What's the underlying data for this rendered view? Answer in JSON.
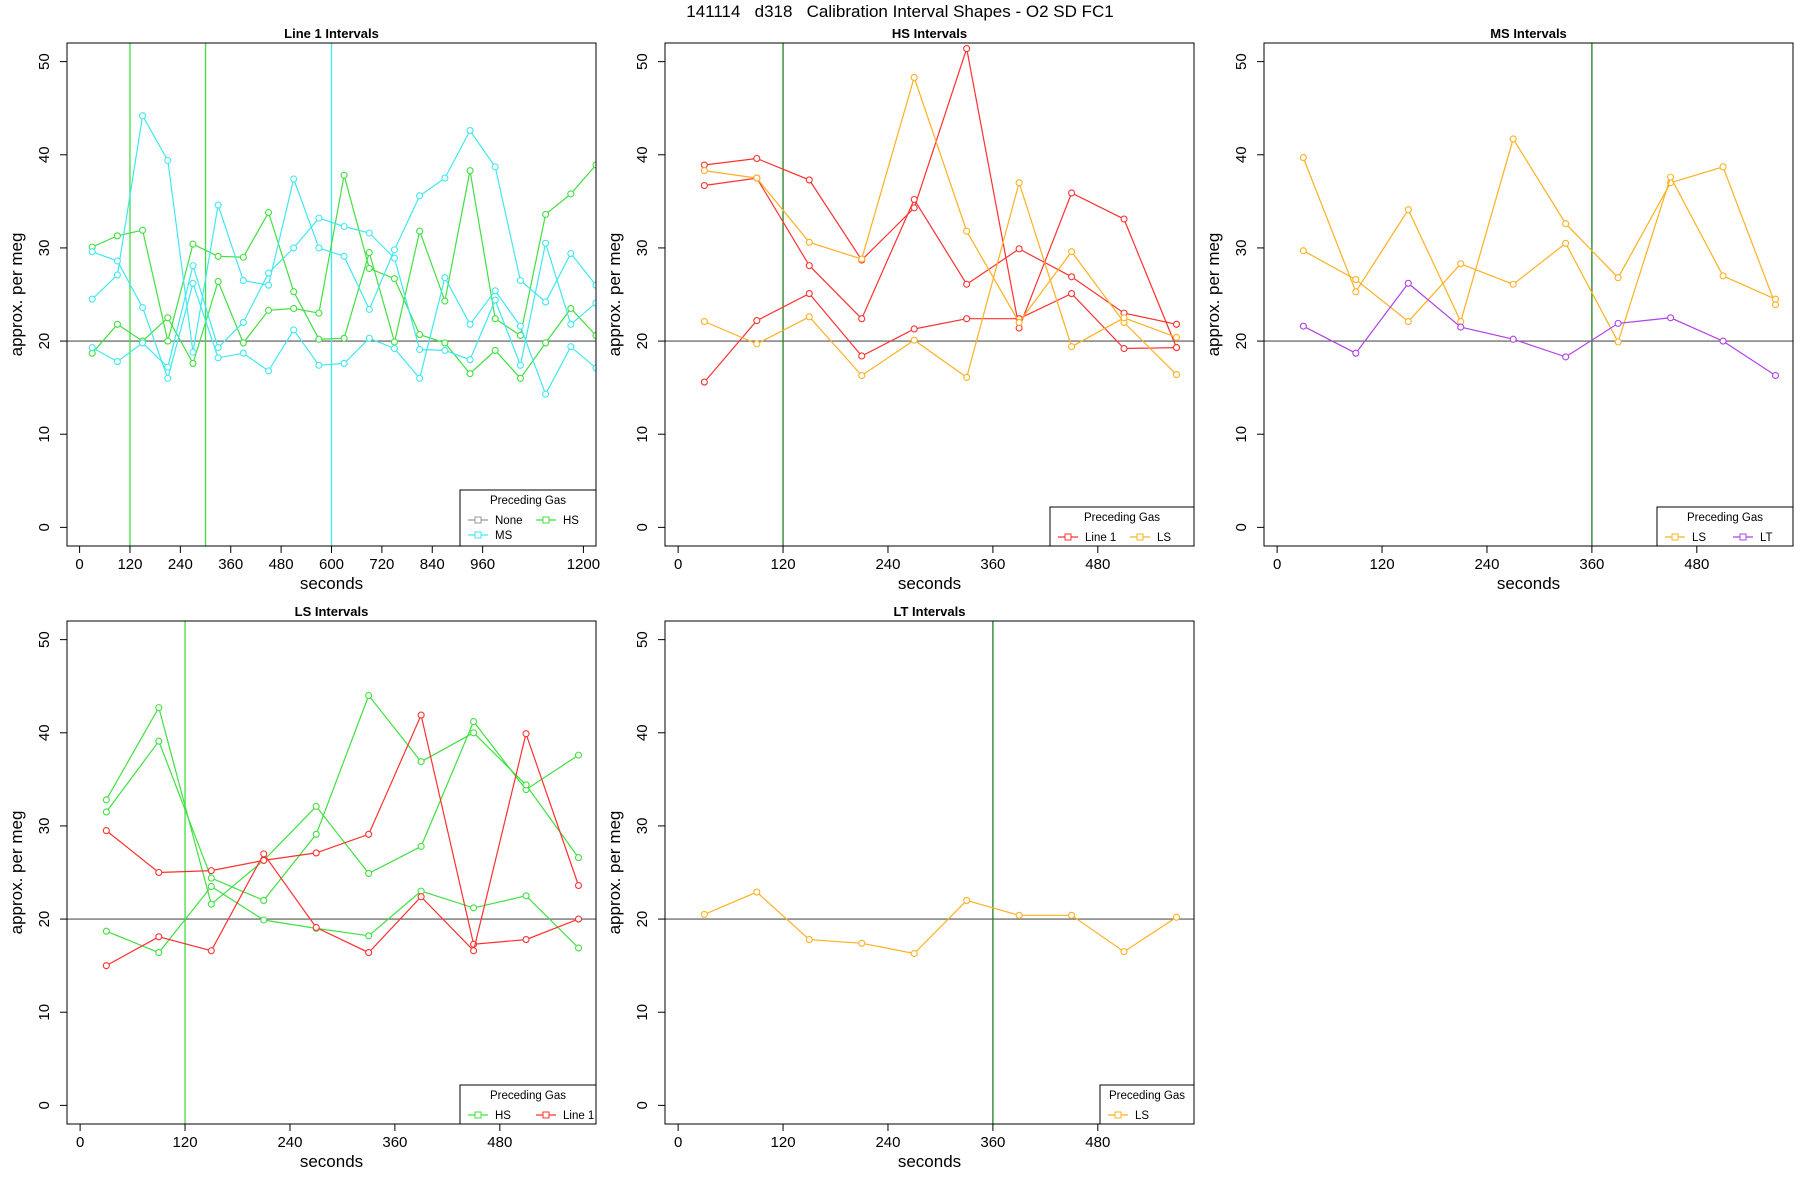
{
  "page": {
    "title": "141114   d318   Calibration Interval Shapes - O2 SD FC1"
  },
  "colors": {
    "none": "#9a9a9a",
    "line1": "#ff3030",
    "hs": "#40e040",
    "ms": "#40e8f0",
    "ls": "#ffb020",
    "lt": "#b040e8",
    "vline_dark": "#208020"
  },
  "chart_data": [
    {
      "type": "line",
      "title": "Line 1 Intervals",
      "xlabel": "seconds",
      "ylabel": "approx. per meg",
      "xlim": [
        -30,
        1230
      ],
      "ylim": [
        -2,
        52
      ],
      "xticks": [
        0,
        120,
        240,
        360,
        480,
        600,
        720,
        840,
        960,
        1200
      ],
      "yticks": [
        0,
        10,
        20,
        30,
        40,
        50
      ],
      "hline": 20,
      "vlines": [
        {
          "x": 120,
          "color": "#40e040"
        },
        {
          "x": 300,
          "color": "#40e040"
        },
        {
          "x": 600,
          "color": "#40e8f0"
        }
      ],
      "legend": {
        "title": "Preceding Gas",
        "position": "bottom-right",
        "columns": 2,
        "entries": [
          {
            "label": "None",
            "color": "#9a9a9a"
          },
          {
            "label": "HS",
            "color": "#40e040"
          },
          {
            "label": "MS",
            "color": "#40e8f0"
          }
        ]
      },
      "series": [
        {
          "gas": "HS",
          "color": "#40e040",
          "x": [
            30,
            90,
            150,
            210,
            270,
            330,
            390,
            450,
            510,
            570,
            630,
            690,
            750,
            810,
            870,
            930,
            990,
            1050,
            1110,
            1170,
            1230
          ],
          "y": [
            30.1,
            31.3,
            31.9,
            20.0,
            30.4,
            29.1,
            29.0,
            33.8,
            25.3,
            20.2,
            20.3,
            29.5,
            19.9,
            31.8,
            24.3,
            38.3,
            22.4,
            20.6,
            33.6,
            35.8,
            38.9
          ]
        },
        {
          "gas": "HS",
          "color": "#40e040",
          "x": [
            30,
            90,
            150,
            210,
            270,
            330,
            390,
            450,
            510,
            570,
            630,
            690,
            750,
            810,
            870,
            930,
            990,
            1050,
            1110,
            1170,
            1230
          ],
          "y": [
            18.7,
            21.8,
            20.0,
            22.5,
            17.6,
            26.4,
            19.8,
            23.3,
            23.5,
            23.0,
            37.8,
            27.8,
            26.7,
            20.7,
            19.8,
            16.5,
            19.0,
            16.0,
            19.8,
            23.5,
            20.6
          ]
        },
        {
          "gas": "MS",
          "color": "#40e8f0",
          "x": [
            30,
            90,
            150,
            210,
            270,
            330,
            390,
            450,
            510,
            570,
            630,
            690,
            750,
            810,
            870,
            930,
            990,
            1050,
            1110,
            1170,
            1230
          ],
          "y": [
            24.5,
            27.1,
            44.2,
            39.4,
            18.8,
            34.6,
            26.5,
            26.0,
            37.4,
            30.0,
            29.1,
            23.4,
            29.8,
            35.6,
            37.5,
            42.6,
            38.7,
            26.5,
            24.2,
            29.4,
            26.0
          ]
        },
        {
          "gas": "MS",
          "color": "#40e8f0",
          "x": [
            30,
            90,
            150,
            210,
            270,
            330,
            390,
            450,
            510,
            570,
            630,
            690,
            750,
            810,
            870,
            930,
            990,
            1050,
            1110,
            1170,
            1230
          ],
          "y": [
            29.6,
            28.6,
            23.6,
            16.0,
            26.2,
            18.2,
            18.7,
            16.8,
            21.2,
            17.4,
            17.6,
            20.3,
            19.2,
            16.0,
            26.8,
            21.8,
            25.4,
            21.6,
            14.3,
            19.4,
            17.1
          ]
        },
        {
          "gas": "MS",
          "color": "#40e8f0",
          "x": [
            30,
            90,
            150,
            210,
            270,
            330,
            390,
            450,
            510,
            570,
            630,
            690,
            750,
            810,
            870,
            930,
            990,
            1050,
            1110,
            1170,
            1230
          ],
          "y": [
            19.3,
            17.8,
            19.8,
            17.2,
            28.1,
            19.3,
            22.0,
            27.3,
            30.0,
            33.2,
            32.3,
            31.6,
            28.9,
            19.1,
            19.0,
            18.0,
            24.4,
            17.4,
            30.5,
            21.8,
            24.1
          ]
        }
      ]
    },
    {
      "type": "line",
      "title": "HS Intervals",
      "xlabel": "seconds",
      "ylabel": "approx. per meg",
      "xlim": [
        -15,
        590
      ],
      "ylim": [
        -2,
        52
      ],
      "xticks": [
        0,
        120,
        240,
        360,
        480
      ],
      "yticks": [
        0,
        10,
        20,
        30,
        40,
        50
      ],
      "hline": 20,
      "vlines": [
        {
          "x": 120,
          "color": "#208020"
        }
      ],
      "legend": {
        "title": "Preceding Gas",
        "position": "bottom-right",
        "columns": 2,
        "entries": [
          {
            "label": "Line 1",
            "color": "#ff3030"
          },
          {
            "label": "LS",
            "color": "#ffb020"
          }
        ]
      },
      "series": [
        {
          "gas": "Line 1",
          "color": "#ff3030",
          "x": [
            30,
            90,
            150,
            210,
            270,
            330,
            390,
            450,
            510,
            570
          ],
          "y": [
            38.9,
            39.6,
            37.3,
            28.7,
            34.3,
            51.4,
            21.4,
            35.9,
            33.1,
            19.3
          ]
        },
        {
          "gas": "Line 1",
          "color": "#ff3030",
          "x": [
            30,
            90,
            150,
            210,
            270,
            330,
            390,
            450,
            510,
            570
          ],
          "y": [
            36.7,
            37.5,
            28.1,
            22.4,
            35.2,
            26.1,
            29.9,
            26.9,
            23.0,
            21.8
          ]
        },
        {
          "gas": "Line 1",
          "color": "#ff3030",
          "x": [
            30,
            90,
            150,
            210,
            270,
            330,
            390,
            450,
            510,
            570
          ],
          "y": [
            15.6,
            22.2,
            25.1,
            18.4,
            21.3,
            22.4,
            22.4,
            25.1,
            19.2,
            19.3
          ]
        },
        {
          "gas": "LS",
          "color": "#ffb020",
          "x": [
            30,
            90,
            150,
            210,
            270,
            330,
            390,
            450,
            510,
            570
          ],
          "y": [
            38.3,
            37.5,
            30.6,
            28.8,
            48.3,
            31.8,
            22.0,
            29.6,
            22.0,
            16.4
          ]
        },
        {
          "gas": "LS",
          "color": "#ffb020",
          "x": [
            30,
            90,
            150,
            210,
            270,
            330,
            390,
            450,
            510,
            570
          ],
          "y": [
            22.1,
            19.7,
            22.6,
            16.3,
            20.1,
            16.1,
            37.0,
            19.4,
            22.5,
            20.4
          ]
        }
      ]
    },
    {
      "type": "line",
      "title": "MS Intervals",
      "xlabel": "seconds",
      "ylabel": "approx. per meg",
      "xlim": [
        -15,
        590
      ],
      "ylim": [
        -2,
        52
      ],
      "xticks": [
        0,
        120,
        240,
        360,
        480
      ],
      "yticks": [
        0,
        10,
        20,
        30,
        40,
        50
      ],
      "hline": 20,
      "vlines": [
        {
          "x": 360,
          "color": "#208020"
        }
      ],
      "legend": {
        "title": "Preceding Gas",
        "position": "bottom-right",
        "columns": 2,
        "entries": [
          {
            "label": "LS",
            "color": "#ffb020"
          },
          {
            "label": "LT",
            "color": "#b040e8"
          }
        ]
      },
      "series": [
        {
          "gas": "LS",
          "color": "#ffb020",
          "x": [
            30,
            90,
            150,
            210,
            270,
            330,
            390,
            450,
            510,
            570
          ],
          "y": [
            39.7,
            25.3,
            34.1,
            22.1,
            41.7,
            32.6,
            26.8,
            37.0,
            38.7,
            23.9
          ]
        },
        {
          "gas": "LS",
          "color": "#ffb020",
          "x": [
            30,
            90,
            150,
            210,
            270,
            330,
            390,
            450,
            510,
            570
          ],
          "y": [
            29.7,
            26.6,
            22.1,
            28.3,
            26.1,
            30.5,
            19.9,
            37.6,
            27.0,
            24.5
          ]
        },
        {
          "gas": "LT",
          "color": "#b040e8",
          "x": [
            30,
            90,
            150,
            210,
            270,
            330,
            390,
            450,
            510,
            570
          ],
          "y": [
            21.6,
            18.7,
            26.2,
            21.5,
            20.2,
            18.3,
            21.9,
            22.5,
            20.0,
            16.3
          ]
        }
      ]
    },
    {
      "type": "line",
      "title": "LS Intervals",
      "xlabel": "seconds",
      "ylabel": "approx. per meg",
      "xlim": [
        -15,
        590
      ],
      "ylim": [
        -2,
        52
      ],
      "xticks": [
        0,
        120,
        240,
        360,
        480
      ],
      "yticks": [
        0,
        10,
        20,
        30,
        40,
        50
      ],
      "hline": 20,
      "vlines": [
        {
          "x": 120,
          "color": "#40e040"
        }
      ],
      "legend": {
        "title": "Preceding Gas",
        "position": "bottom-right",
        "columns": 2,
        "entries": [
          {
            "label": "HS",
            "color": "#40e040"
          },
          {
            "label": "Line 1",
            "color": "#ff3030"
          }
        ]
      },
      "series": [
        {
          "gas": "HS",
          "color": "#40e040",
          "x": [
            30,
            90,
            150,
            210,
            270,
            330,
            390,
            450,
            510,
            570
          ],
          "y": [
            32.8,
            42.7,
            21.6,
            26.3,
            32.1,
            24.9,
            27.8,
            41.2,
            33.9,
            37.6
          ]
        },
        {
          "gas": "HS",
          "color": "#40e040",
          "x": [
            30,
            90,
            150,
            210,
            270,
            330,
            390,
            450,
            510,
            570
          ],
          "y": [
            31.5,
            39.1,
            24.4,
            22.0,
            29.1,
            44.0,
            36.9,
            40.0,
            34.4,
            26.6
          ]
        },
        {
          "gas": "HS",
          "color": "#40e040",
          "x": [
            30,
            90,
            150,
            210,
            270,
            330,
            390,
            450,
            510,
            570
          ],
          "y": [
            18.7,
            16.4,
            23.5,
            19.9,
            19.0,
            18.2,
            23.0,
            21.2,
            22.5,
            16.9
          ]
        },
        {
          "gas": "Line 1",
          "color": "#ff3030",
          "x": [
            30,
            90,
            150,
            210,
            270,
            330,
            390,
            450,
            510,
            570
          ],
          "y": [
            29.5,
            25.0,
            25.2,
            26.3,
            27.1,
            29.1,
            41.9,
            17.3,
            17.8,
            20.0
          ]
        },
        {
          "gas": "Line 1",
          "color": "#ff3030",
          "x": [
            30,
            90,
            150,
            210,
            270,
            330,
            390,
            450,
            510,
            570
          ],
          "y": [
            15.0,
            18.1,
            16.6,
            27.0,
            19.1,
            16.4,
            22.4,
            16.6,
            39.9,
            23.6
          ]
        }
      ]
    },
    {
      "type": "line",
      "title": "LT Intervals",
      "xlabel": "seconds",
      "ylabel": "approx. per meg",
      "xlim": [
        -15,
        590
      ],
      "ylim": [
        -2,
        52
      ],
      "xticks": [
        0,
        120,
        240,
        360,
        480
      ],
      "yticks": [
        0,
        10,
        20,
        30,
        40,
        50
      ],
      "hline": 20,
      "vlines": [
        {
          "x": 360,
          "color": "#208020"
        }
      ],
      "legend": {
        "title": "Preceding Gas",
        "position": "bottom-right",
        "columns": 1,
        "entries": [
          {
            "label": "LS",
            "color": "#ffb020"
          }
        ]
      },
      "series": [
        {
          "gas": "LS",
          "color": "#ffb020",
          "x": [
            30,
            90,
            150,
            210,
            270,
            330,
            390,
            450,
            510,
            570
          ],
          "y": [
            20.5,
            22.9,
            17.8,
            17.4,
            16.3,
            22.0,
            20.4,
            20.4,
            16.5,
            20.2
          ]
        }
      ]
    }
  ]
}
